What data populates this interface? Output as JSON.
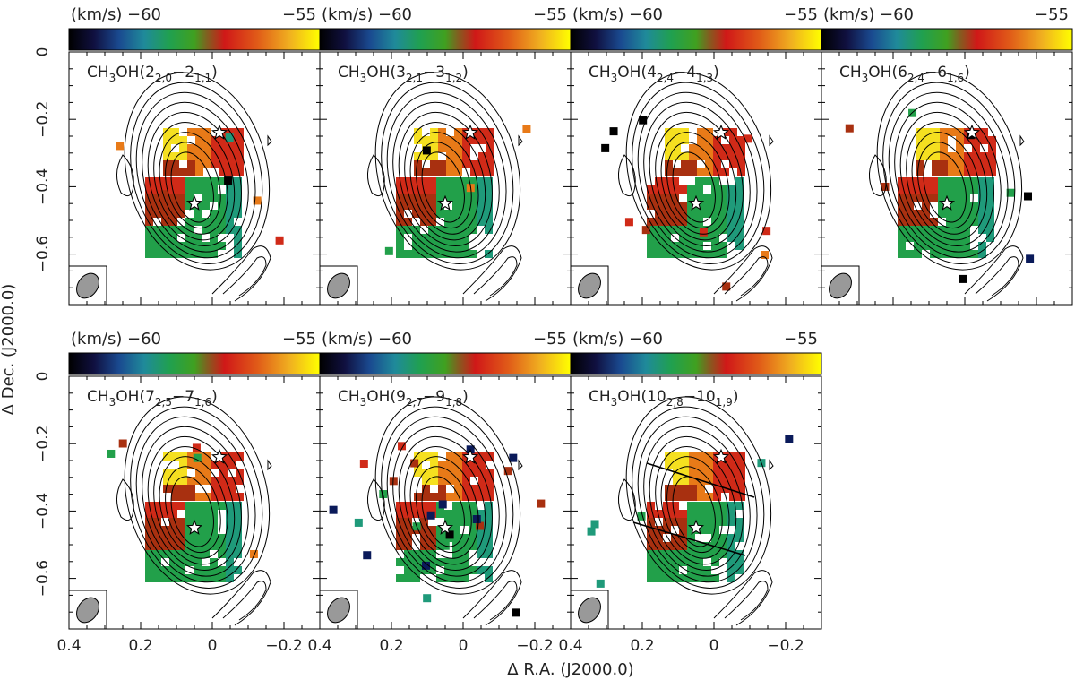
{
  "figure": {
    "ylabel": "Δ Dec. (J2000.0)",
    "xlabel": "Δ R.A. (J2000.0)",
    "colorbar": {
      "unit": "(km/s)",
      "ticks": [
        -60,
        -55
      ],
      "colors": [
        "#000000",
        "#1a1a5a",
        "#1f6fa8",
        "#2aa06a",
        "#1a9a2a",
        "#6a9a2a",
        "#cc2020",
        "#e06a1a",
        "#f0b020",
        "#ffff00"
      ]
    }
  },
  "chart_data": {
    "type": "heatmap",
    "description_type": "channel velocity maps with contours",
    "xlim": [
      0.4,
      -0.3
    ],
    "ylim": [
      -0.75,
      0.0
    ],
    "x_ticks": [
      "0.4",
      "0.2",
      "0",
      "-0.2"
    ],
    "y_ticks": [
      "0",
      "-0.2",
      "-0.4",
      "-0.6"
    ],
    "x_tick_values": [
      0.4,
      0.2,
      0.0,
      -0.2
    ],
    "y_tick_values": [
      0.0,
      -0.2,
      -0.4,
      -0.6
    ],
    "stars": [
      {
        "x": -0.02,
        "y": -0.24
      },
      {
        "x": 0.05,
        "y": -0.45
      }
    ],
    "panels": [
      {
        "label": "CH3OH(2_{2,0}-2_{1,1})",
        "main": "CH",
        "sub1": "3",
        "mid": "OH(2",
        "sub2": "2,0",
        "mid2": "−2",
        "sub3": "1,1",
        "end": ")"
      },
      {
        "label": "CH3OH(3_{2,1}-3_{1,2})",
        "main": "CH",
        "sub1": "3",
        "mid": "OH(3",
        "sub2": "2,1",
        "mid2": "−3",
        "sub3": "1,2",
        "end": ")"
      },
      {
        "label": "CH3OH(4_{2,4}-4_{1,3})",
        "main": "CH",
        "sub1": "3",
        "mid": "OH(4",
        "sub2": "2,4",
        "mid2": "−4",
        "sub3": "1,3",
        "end": ")"
      },
      {
        "label": "CH3OH(6_{2,4}-6_{1,6})",
        "main": "CH",
        "sub1": "3",
        "mid": "OH(6",
        "sub2": "2,4",
        "mid2": "−6",
        "sub3": "1,6",
        "end": ")"
      },
      {
        "label": "CH3OH(7_{2,5}-7_{1,6})",
        "main": "CH",
        "sub1": "3",
        "mid": "OH(7",
        "sub2": "2,5",
        "mid2": "−7",
        "sub3": "1,6",
        "end": ")"
      },
      {
        "label": "CH3OH(9_{2,7}-9_{1,8})",
        "main": "CH",
        "sub1": "3",
        "mid": "OH(9",
        "sub2": "2,7",
        "mid2": "−9",
        "sub3": "1,8",
        "end": ")"
      },
      {
        "label": "CH3OH(10_{2,8}-10_{1,9})",
        "main": "CH",
        "sub1": "3",
        "mid": "OH(10",
        "sub2": "2,8",
        "mid2": "−10",
        "sub3": "1,9",
        "end": ")"
      }
    ]
  }
}
